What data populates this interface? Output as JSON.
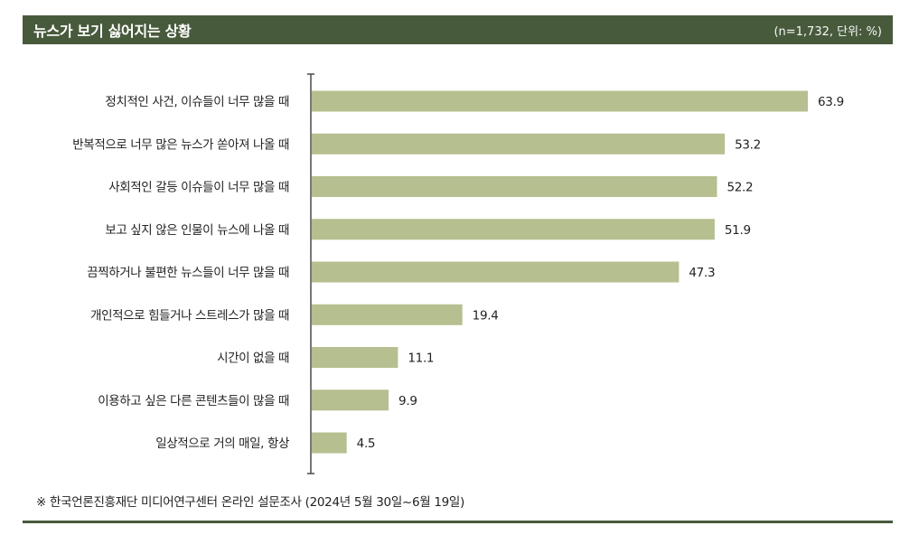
{
  "header": {
    "title": "뉴스가 보기 싫어지는 상황",
    "sample_note": "(n=1,732, 단위: %)"
  },
  "footnote": "※ 한국언론진흥재단 미디어연구센터 온라인 설문조사 (2024년 5월 30일~6월 19일)",
  "colors": {
    "header_bg": "#485a3c",
    "bar": "#b5bf8f",
    "axis": "#555555"
  },
  "chart_data": {
    "type": "bar",
    "orientation": "horizontal",
    "categories": [
      "정치적인 사건, 이슈들이 너무 많을 때",
      "반복적으로 너무 많은 뉴스가 쏟아져 나올 때",
      "사회적인 갈등 이슈들이 너무 많을 때",
      "보고 싶지 않은 인물이 뉴스에 나올 때",
      "끔찍하거나 불편한 뉴스들이 너무 많을 때",
      "개인적으로 힘들거나 스트레스가 많을 때",
      "시간이 없을 때",
      "이용하고 싶은 다른 콘텐츠들이 많을 때",
      "일상적으로 거의 매일, 항상"
    ],
    "values": [
      63.9,
      53.2,
      52.2,
      51.9,
      47.3,
      19.4,
      11.1,
      9.9,
      4.5
    ],
    "value_labels": [
      "63.9",
      "53.2",
      "52.2",
      "51.9",
      "47.3",
      "19.4",
      "11.1",
      "9.9",
      "4.5"
    ],
    "xlim": [
      0,
      70
    ],
    "grid": false,
    "legend": "none"
  }
}
